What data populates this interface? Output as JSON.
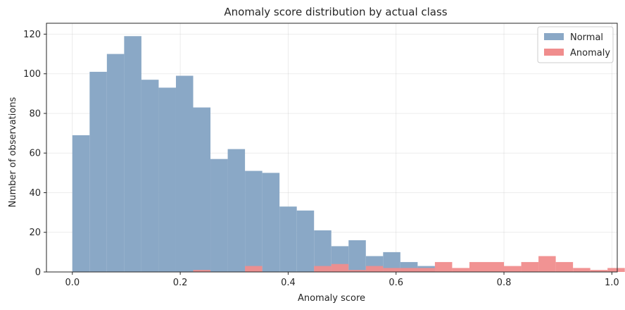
{
  "chart_data": {
    "type": "histogram",
    "title": "Anomaly score distribution by actual class",
    "xlabel": "Anomaly score",
    "ylabel": "Number of observations",
    "xlim": [
      -0.048,
      1.01
    ],
    "ylim": [
      0,
      125.5
    ],
    "x_ticks": [
      0.0,
      0.2,
      0.4,
      0.6,
      0.8,
      1.0
    ],
    "x_tick_labels": [
      "0.0",
      "0.2",
      "0.4",
      "0.6",
      "0.8",
      "1.0"
    ],
    "y_ticks": [
      0,
      20,
      40,
      60,
      80,
      100,
      120
    ],
    "y_tick_labels": [
      "0",
      "20",
      "40",
      "60",
      "80",
      "100",
      "120"
    ],
    "grid": true,
    "legend_position": "top-right",
    "bin_width": 0.032,
    "series": [
      {
        "name": "Normal",
        "color": "#8aa8c6",
        "bin_start": 0.0,
        "values": [
          69,
          101,
          110,
          119,
          97,
          93,
          99,
          83,
          57,
          62,
          51,
          50,
          33,
          31,
          21,
          13,
          16,
          8,
          10,
          5,
          3,
          0,
          0,
          0,
          0,
          0,
          0,
          0,
          0,
          0
        ]
      },
      {
        "name": "Anomaly",
        "color": "#f08d8d",
        "bin_start": 0.0,
        "values": [
          0,
          0,
          0,
          0,
          0,
          0,
          0,
          1,
          0,
          0,
          3,
          0,
          0,
          0,
          3,
          4,
          1,
          3,
          2,
          2,
          2,
          5,
          2,
          5,
          5,
          3,
          5,
          8,
          5,
          2,
          1,
          2
        ]
      }
    ]
  }
}
